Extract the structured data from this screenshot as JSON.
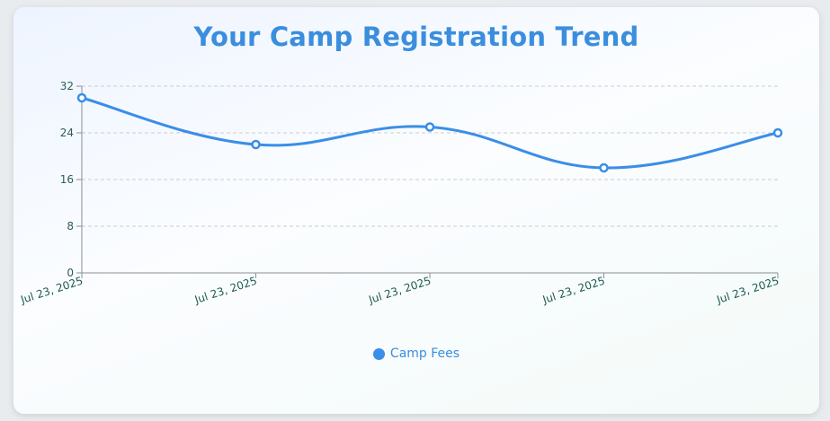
{
  "chart_data": {
    "type": "line",
    "title": "Your Camp Registration Trend",
    "categories": [
      "Jul 23, 2025",
      "Jul 23, 2025",
      "Jul 23, 2025",
      "Jul 23, 2025",
      "Jul 23, 2025"
    ],
    "series": [
      {
        "name": "Camp Fees",
        "values": [
          30,
          22,
          25,
          18,
          24
        ]
      }
    ],
    "xlabel": "",
    "ylabel": "",
    "ylim": [
      0,
      32
    ],
    "yticks": [
      0,
      8,
      16,
      24,
      32
    ],
    "grid": true,
    "legend": "bottom-center",
    "colors": {
      "line": "#3a8ee6",
      "title": "#3b8ede",
      "ticks": "#2e5d55"
    }
  }
}
